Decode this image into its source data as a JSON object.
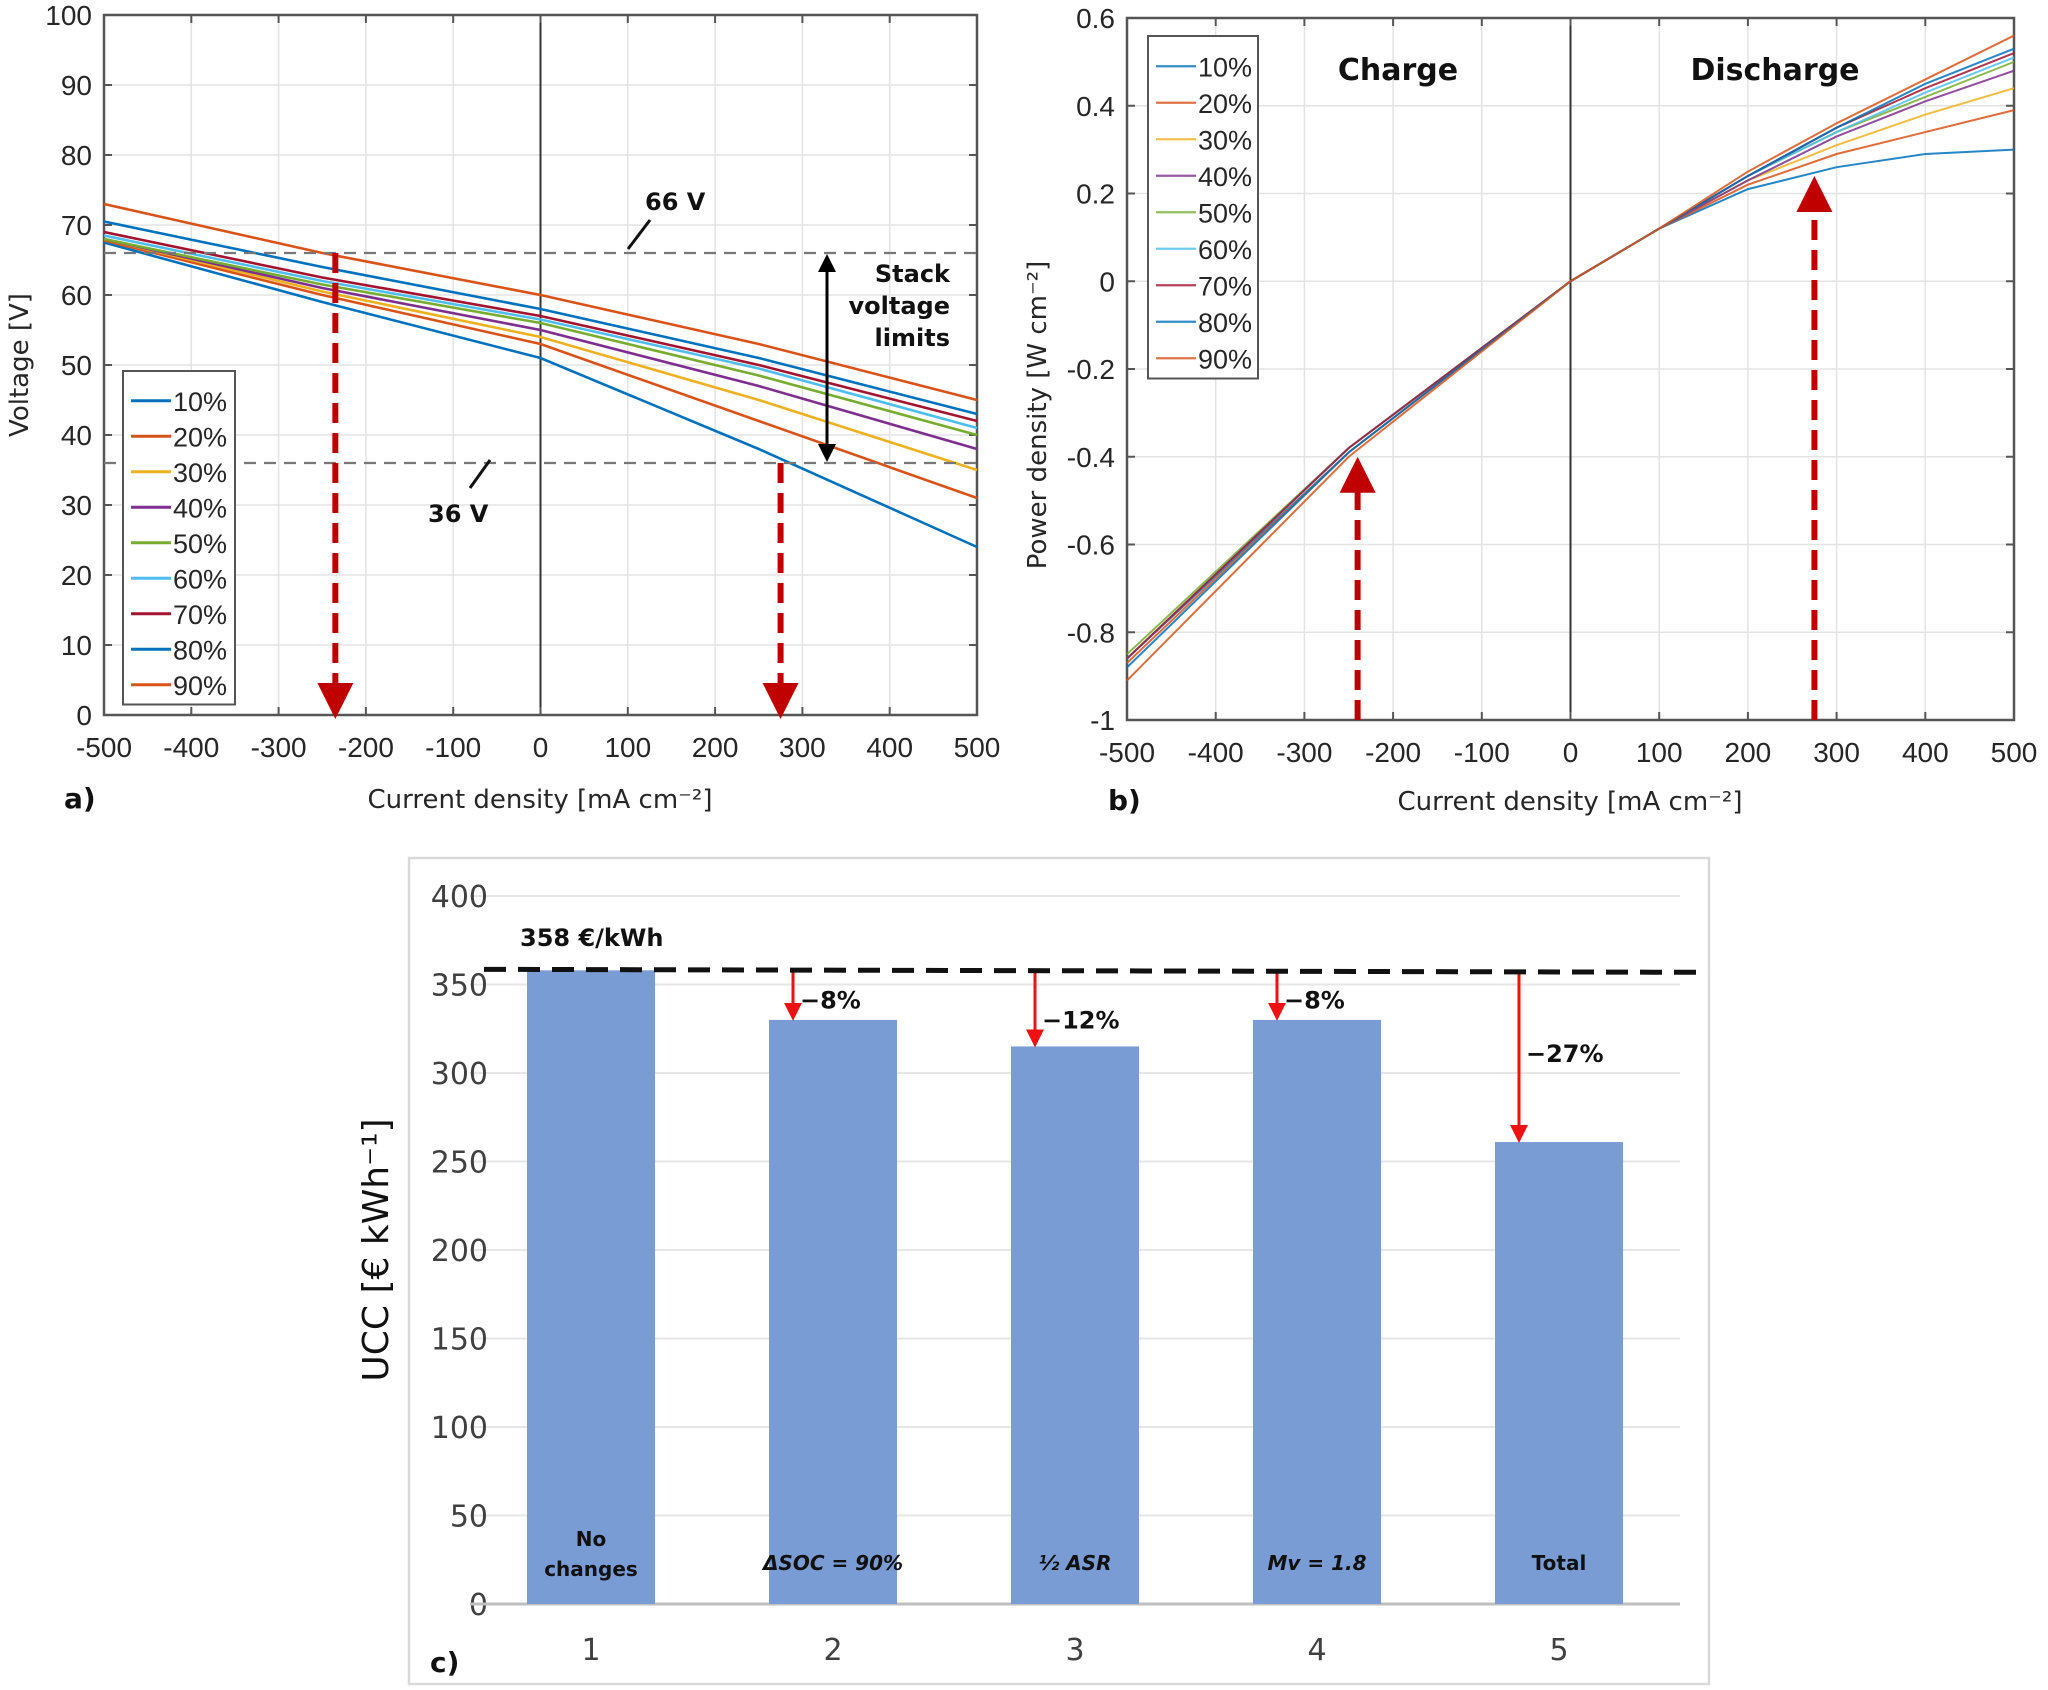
{
  "chart_data": [
    {
      "panel": "a)",
      "type": "line",
      "xlabel": "Current density [mA cm⁻²]",
      "ylabel": "Voltage [V]",
      "xlim": [
        -500,
        500
      ],
      "ylim": [
        0,
        100
      ],
      "xticks": [
        -500,
        -400,
        -300,
        -200,
        -100,
        0,
        100,
        200,
        300,
        400,
        500
      ],
      "yticks": [
        0,
        10,
        20,
        30,
        40,
        50,
        60,
        70,
        80,
        90,
        100
      ],
      "grid": true,
      "legend": "bottom-left",
      "x": [
        -500,
        -250,
        0,
        250,
        500
      ],
      "series": [
        {
          "name": "10%",
          "color": "#0072BD",
          "values": [
            67.5,
            59,
            51,
            38,
            24
          ]
        },
        {
          "name": "20%",
          "color": "#D95319",
          "values": [
            67.8,
            60,
            53,
            42,
            31
          ]
        },
        {
          "name": "30%",
          "color": "#EDB120",
          "values": [
            68,
            60.5,
            54,
            45,
            35
          ]
        },
        {
          "name": "40%",
          "color": "#7E2F8E",
          "values": [
            68,
            61,
            55,
            47,
            38
          ]
        },
        {
          "name": "50%",
          "color": "#77AC30",
          "values": [
            68,
            61.5,
            56,
            48.5,
            40
          ]
        },
        {
          "name": "60%",
          "color": "#4DBEEE",
          "values": [
            68.5,
            62,
            56.5,
            49.5,
            41
          ]
        },
        {
          "name": "70%",
          "color": "#A2142F",
          "values": [
            69,
            62.5,
            57,
            50,
            42
          ]
        },
        {
          "name": "80%",
          "color": "#0072BD",
          "values": [
            70.5,
            64,
            58,
            51,
            43
          ]
        },
        {
          "name": "90%",
          "color": "#D95319",
          "values": [
            73,
            66,
            60,
            53,
            45
          ]
        }
      ],
      "hlines": [
        {
          "y": 66,
          "label": "66 V"
        },
        {
          "y": 36,
          "label": "36 V"
        }
      ],
      "annotations": [
        "Stack voltage limits"
      ],
      "markers": [
        {
          "x": -235,
          "direction": "down"
        },
        {
          "x": 275,
          "direction": "down"
        }
      ]
    },
    {
      "panel": "b)",
      "type": "line",
      "xlabel": "Current density [mA cm⁻²]",
      "ylabel": "Power density [W cm⁻²]",
      "xlim": [
        -500,
        500
      ],
      "ylim": [
        -1,
        0.6
      ],
      "xticks": [
        -500,
        -400,
        -300,
        -200,
        -100,
        0,
        100,
        200,
        300,
        400,
        500
      ],
      "yticks": [
        -1,
        -0.8,
        -0.6,
        -0.4,
        -0.2,
        0,
        0.2,
        0.4,
        0.6
      ],
      "grid": true,
      "legend": "top-left",
      "x": [
        -500,
        -250,
        0,
        100,
        200,
        300,
        400,
        500
      ],
      "series": [
        {
          "name": "10%",
          "color": "#0072BD",
          "values": [
            -0.86,
            -0.39,
            0,
            0.12,
            0.21,
            0.26,
            0.29,
            0.3
          ]
        },
        {
          "name": "20%",
          "color": "#D95319",
          "values": [
            -0.87,
            -0.39,
            0,
            0.12,
            0.22,
            0.29,
            0.34,
            0.39
          ]
        },
        {
          "name": "30%",
          "color": "#EDB120",
          "values": [
            -0.86,
            -0.38,
            0,
            0.12,
            0.23,
            0.31,
            0.38,
            0.44
          ]
        },
        {
          "name": "40%",
          "color": "#7E2F8E",
          "values": [
            -0.86,
            -0.38,
            0,
            0.12,
            0.23,
            0.33,
            0.41,
            0.48
          ]
        },
        {
          "name": "50%",
          "color": "#77AC30",
          "values": [
            -0.85,
            -0.38,
            0,
            0.12,
            0.24,
            0.34,
            0.42,
            0.5
          ]
        },
        {
          "name": "60%",
          "color": "#4DBEEE",
          "values": [
            -0.86,
            -0.38,
            0,
            0.12,
            0.24,
            0.34,
            0.43,
            0.51
          ]
        },
        {
          "name": "70%",
          "color": "#A2142F",
          "values": [
            -0.86,
            -0.38,
            0,
            0.12,
            0.24,
            0.35,
            0.44,
            0.52
          ]
        },
        {
          "name": "80%",
          "color": "#0072BD",
          "values": [
            -0.88,
            -0.39,
            0,
            0.12,
            0.24,
            0.35,
            0.45,
            0.53
          ]
        },
        {
          "name": "90%",
          "color": "#D95319",
          "values": [
            -0.91,
            -0.4,
            0,
            0.12,
            0.25,
            0.36,
            0.46,
            0.56
          ]
        }
      ],
      "annotations": [
        "Charge",
        "Discharge"
      ],
      "markers": [
        {
          "x": -240,
          "direction": "up"
        },
        {
          "x": 275,
          "direction": "up"
        }
      ]
    },
    {
      "panel": "c)",
      "type": "bar",
      "ylabel": "UCC [€ kWh⁻¹]",
      "categories": [
        "1",
        "2",
        "3",
        "4",
        "5"
      ],
      "bar_labels": [
        "No changes",
        "ΔSOC = 90%",
        "½ ASR",
        "Mv = 1.8",
        "Total"
      ],
      "values": [
        358,
        330,
        315,
        330,
        261
      ],
      "ylim": [
        0,
        400
      ],
      "yticks": [
        0,
        50,
        100,
        150,
        200,
        250,
        300,
        350,
        400
      ],
      "grid": true,
      "bar_color": "#7A9CD4",
      "reference_line": {
        "y": 358,
        "label": "358 €/kWh"
      },
      "reductions": [
        "",
        "−8%",
        "−12%",
        "−8%",
        "−27%"
      ]
    }
  ]
}
